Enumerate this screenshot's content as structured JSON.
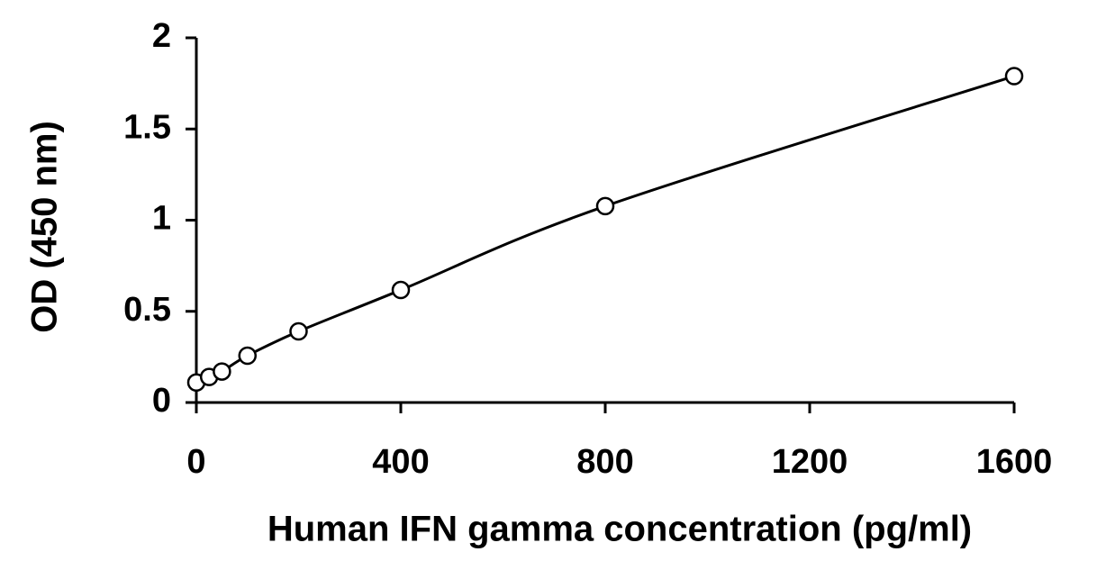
{
  "chart_data": {
    "type": "scatter",
    "x_label": "Human IFN gamma concentration (pg/ml)",
    "y_label": "OD (450 nm)",
    "series": [
      {
        "x": [
          0,
          25,
          50,
          100,
          200,
          400,
          800,
          1600
        ],
        "values": [
          0.11,
          0.14,
          0.17,
          0.257,
          0.39,
          0.617,
          1.077,
          1.79
        ],
        "color": "#000000"
      }
    ],
    "trendline": true,
    "xlim": [
      0,
      1600
    ],
    "xticks": [
      0,
      400,
      800,
      1200,
      1600
    ],
    "ylim": [
      0,
      2
    ],
    "yticks": [
      0,
      0.5,
      1,
      1.5,
      2
    ]
  }
}
